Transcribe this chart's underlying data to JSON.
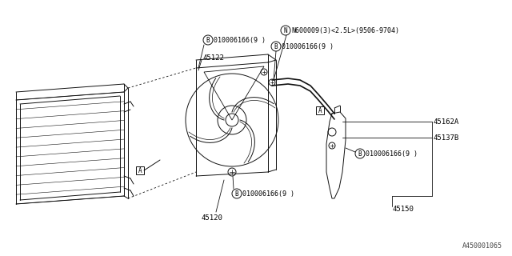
{
  "bg_color": "#ffffff",
  "line_color": "#111111",
  "diagram_id": "A450001065",
  "label_45122": "45122",
  "label_45120": "45120",
  "label_45150": "45150",
  "label_45162A": "45162A",
  "label_45137B": "45137B",
  "label_bolt_b": "010006166(9 )",
  "label_bolt_n": "N600009(3)<2.5L>(9506-9704)"
}
